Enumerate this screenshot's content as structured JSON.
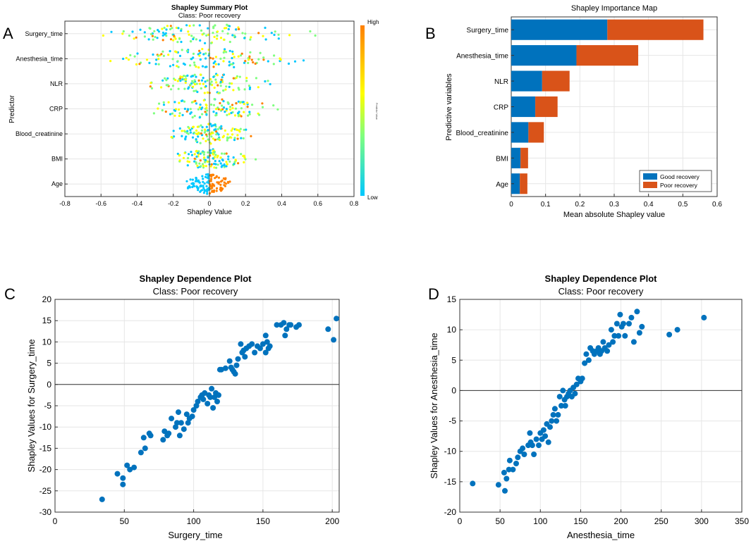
{
  "chart_data": [
    {
      "panel": "A",
      "type": "scatter",
      "title": "Shapley Summary Plot",
      "subtitle": "Class: Poor recovery",
      "xlabel": "Shapley Value",
      "ylabel": "Predictor",
      "xlim": [
        -0.8,
        0.8
      ],
      "xticks": [
        "-0.8",
        "-0.6",
        "-0.4",
        "-0.2",
        "0",
        "0.2",
        "0.4",
        "0.6",
        "0.8"
      ],
      "xtick_values": [
        -0.8,
        -0.6,
        -0.4,
        -0.2,
        0,
        0.2,
        0.4,
        0.6,
        0.8
      ],
      "categories": [
        "Surgery_time",
        "Anesthesia_time",
        "NLR",
        "CRP",
        "Blood_creatinine",
        "BMI",
        "Age"
      ],
      "spread": [
        0.7,
        0.68,
        0.45,
        0.5,
        0.3,
        0.27,
        0.16
      ],
      "points_per_row": 120,
      "colorbar": {
        "label": "Predictor Value",
        "high_label": "High",
        "low_label": "Low",
        "colors": [
          "#00c8ff",
          "#7fff7f",
          "#ffff00",
          "#ff8000"
        ]
      }
    },
    {
      "panel": "B",
      "type": "bar",
      "orientation": "horizontal",
      "stacked": true,
      "title": "Shapley Importance Map",
      "xlabel": "Mean absolute Shapley value",
      "ylabel": "Predictive variables",
      "xlim": [
        0,
        0.6
      ],
      "xticks": [
        "0",
        "0.1",
        "0.2",
        "0.3",
        "0.4",
        "0.5",
        "0.6"
      ],
      "xtick_values": [
        0,
        0.1,
        0.2,
        0.3,
        0.4,
        0.5,
        0.6
      ],
      "categories": [
        "Surgery_time",
        "Anesthesia_time",
        "NLR",
        "CRP",
        "Blood_creatinine",
        "BMI",
        "Age"
      ],
      "series": [
        {
          "name": "Good recovery",
          "color": "#0072bd",
          "values": [
            0.28,
            0.19,
            0.09,
            0.07,
            0.05,
            0.027,
            0.025
          ]
        },
        {
          "name": "Poor recovery",
          "color": "#d95319",
          "values": [
            0.28,
            0.18,
            0.08,
            0.065,
            0.045,
            0.022,
            0.022
          ]
        }
      ]
    },
    {
      "panel": "C",
      "type": "scatter",
      "title": "Shapley Dependence Plot",
      "subtitle": "Class: Poor recovery",
      "xlabel": "Surgery_time",
      "ylabel": "Shapley Values for Surgery_time",
      "xlim": [
        0,
        205
      ],
      "ylim": [
        -30,
        20
      ],
      "xticks": [
        "0",
        "50",
        "100",
        "150",
        "200"
      ],
      "xtick_values": [
        0,
        50,
        100,
        150,
        200
      ],
      "yticks": [
        "-30",
        "-25",
        "-20",
        "-15",
        "-10",
        "-5",
        "0",
        "5",
        "10",
        "15",
        "20"
      ],
      "ytick_values": [
        -30,
        -25,
        -20,
        -15,
        -10,
        -5,
        0,
        5,
        10,
        15,
        20
      ],
      "points": [
        [
          34,
          -27
        ],
        [
          45,
          -21
        ],
        [
          49,
          -22
        ],
        [
          49,
          -23.5
        ],
        [
          52,
          -19
        ],
        [
          54,
          -20
        ],
        [
          57,
          -19.5
        ],
        [
          62,
          -16
        ],
        [
          64,
          -12.5
        ],
        [
          65,
          -15
        ],
        [
          68,
          -11.5
        ],
        [
          69,
          -12
        ],
        [
          78,
          -13
        ],
        [
          79,
          -11
        ],
        [
          81,
          -12
        ],
        [
          82,
          -11.5
        ],
        [
          84,
          -8
        ],
        [
          87,
          -10
        ],
        [
          88,
          -9
        ],
        [
          89,
          -6.5
        ],
        [
          90,
          -12
        ],
        [
          91,
          -9
        ],
        [
          93,
          -10.5
        ],
        [
          95,
          -7
        ],
        [
          96,
          -9
        ],
        [
          97,
          -8
        ],
        [
          99,
          -7.5
        ],
        [
          100,
          -6
        ],
        [
          102,
          -5
        ],
        [
          103,
          -4
        ],
        [
          105,
          -3
        ],
        [
          106,
          -2.5
        ],
        [
          107,
          -3.5
        ],
        [
          108,
          -2
        ],
        [
          110,
          -4.5
        ],
        [
          111,
          -2.5
        ],
        [
          112,
          -3
        ],
        [
          113,
          -1
        ],
        [
          114,
          -5.5
        ],
        [
          115,
          -3
        ],
        [
          116,
          -2
        ],
        [
          117,
          -4
        ],
        [
          118,
          -2.5
        ],
        [
          119,
          3.5
        ],
        [
          120,
          3.5
        ],
        [
          123,
          3.8
        ],
        [
          126,
          5.5
        ],
        [
          127,
          4
        ],
        [
          128,
          3.5
        ],
        [
          129,
          3
        ],
        [
          130,
          2.5
        ],
        [
          131,
          4.5
        ],
        [
          132,
          6
        ],
        [
          134,
          9.5
        ],
        [
          135,
          7.5
        ],
        [
          136,
          8
        ],
        [
          137,
          6.5
        ],
        [
          138,
          8.5
        ],
        [
          140,
          9
        ],
        [
          142,
          9.5
        ],
        [
          144,
          7.5
        ],
        [
          146,
          9
        ],
        [
          148,
          8.5
        ],
        [
          150,
          9.5
        ],
        [
          152,
          7.5
        ],
        [
          152,
          11.5
        ],
        [
          153,
          10
        ],
        [
          154,
          8.5
        ],
        [
          155,
          9
        ],
        [
          160,
          14
        ],
        [
          163,
          14
        ],
        [
          165,
          14.5
        ],
        [
          166,
          11.5
        ],
        [
          167,
          13
        ],
        [
          169,
          14
        ],
        [
          170,
          14
        ],
        [
          174,
          13.5
        ],
        [
          176,
          14
        ],
        [
          197,
          13
        ],
        [
          201,
          10.5
        ],
        [
          203,
          15.5
        ]
      ]
    },
    {
      "panel": "D",
      "type": "scatter",
      "title": "Shapley Dependence Plot",
      "subtitle": "Class: Poor recovery",
      "xlabel": "Anesthesia_time",
      "ylabel": "Shapley Values for Anesthesia_time",
      "xlim": [
        0,
        350
      ],
      "ylim": [
        -20,
        15
      ],
      "xticks": [
        "0",
        "50",
        "100",
        "150",
        "200",
        "250",
        "300",
        "350"
      ],
      "xtick_values": [
        0,
        50,
        100,
        150,
        200,
        250,
        300,
        350
      ],
      "yticks": [
        "-20",
        "-15",
        "-10",
        "-5",
        "0",
        "5",
        "10",
        "15"
      ],
      "ytick_values": [
        -20,
        -15,
        -10,
        -5,
        0,
        5,
        10,
        15
      ],
      "points": [
        [
          16,
          -15.3
        ],
        [
          48,
          -15.5
        ],
        [
          55,
          -13.5
        ],
        [
          56,
          -16.5
        ],
        [
          58,
          -14.5
        ],
        [
          61,
          -13
        ],
        [
          62,
          -11.5
        ],
        [
          66,
          -13
        ],
        [
          70,
          -12
        ],
        [
          72,
          -11
        ],
        [
          75,
          -10
        ],
        [
          78,
          -9.5
        ],
        [
          80,
          -10.5
        ],
        [
          85,
          -9
        ],
        [
          87,
          -7
        ],
        [
          88,
          -8.5
        ],
        [
          90,
          -9
        ],
        [
          92,
          -10.5
        ],
        [
          95,
          -8
        ],
        [
          98,
          -9
        ],
        [
          100,
          -7
        ],
        [
          102,
          -8
        ],
        [
          104,
          -6.5
        ],
        [
          106,
          -7.5
        ],
        [
          108,
          -5.5
        ],
        [
          110,
          -8.5
        ],
        [
          112,
          -6
        ],
        [
          114,
          -5
        ],
        [
          116,
          -4
        ],
        [
          118,
          -3
        ],
        [
          120,
          -5
        ],
        [
          122,
          -4
        ],
        [
          124,
          -1
        ],
        [
          126,
          -2.5
        ],
        [
          128,
          0
        ],
        [
          130,
          -1.5
        ],
        [
          131,
          -2.5
        ],
        [
          133,
          -1
        ],
        [
          135,
          -0.5
        ],
        [
          137,
          0
        ],
        [
          139,
          -1
        ],
        [
          141,
          0.5
        ],
        [
          143,
          -0.5
        ],
        [
          145,
          1
        ],
        [
          147,
          2
        ],
        [
          150,
          1.5
        ],
        [
          152,
          2
        ],
        [
          155,
          4.5
        ],
        [
          157,
          6
        ],
        [
          160,
          5
        ],
        [
          162,
          7
        ],
        [
          165,
          6.5
        ],
        [
          167,
          6
        ],
        [
          170,
          6.5
        ],
        [
          172,
          7
        ],
        [
          174,
          6
        ],
        [
          176,
          6.5
        ],
        [
          178,
          8
        ],
        [
          180,
          7
        ],
        [
          183,
          6.5
        ],
        [
          185,
          7.5
        ],
        [
          188,
          10
        ],
        [
          190,
          8
        ],
        [
          192,
          9
        ],
        [
          195,
          11
        ],
        [
          197,
          9
        ],
        [
          199,
          12.5
        ],
        [
          201,
          10.5
        ],
        [
          203,
          11
        ],
        [
          205,
          9
        ],
        [
          210,
          11
        ],
        [
          213,
          12
        ],
        [
          216,
          8
        ],
        [
          220,
          13
        ],
        [
          223,
          9.5
        ],
        [
          226,
          10.5
        ],
        [
          260,
          9.2
        ],
        [
          270,
          10
        ],
        [
          303,
          12
        ]
      ]
    }
  ]
}
